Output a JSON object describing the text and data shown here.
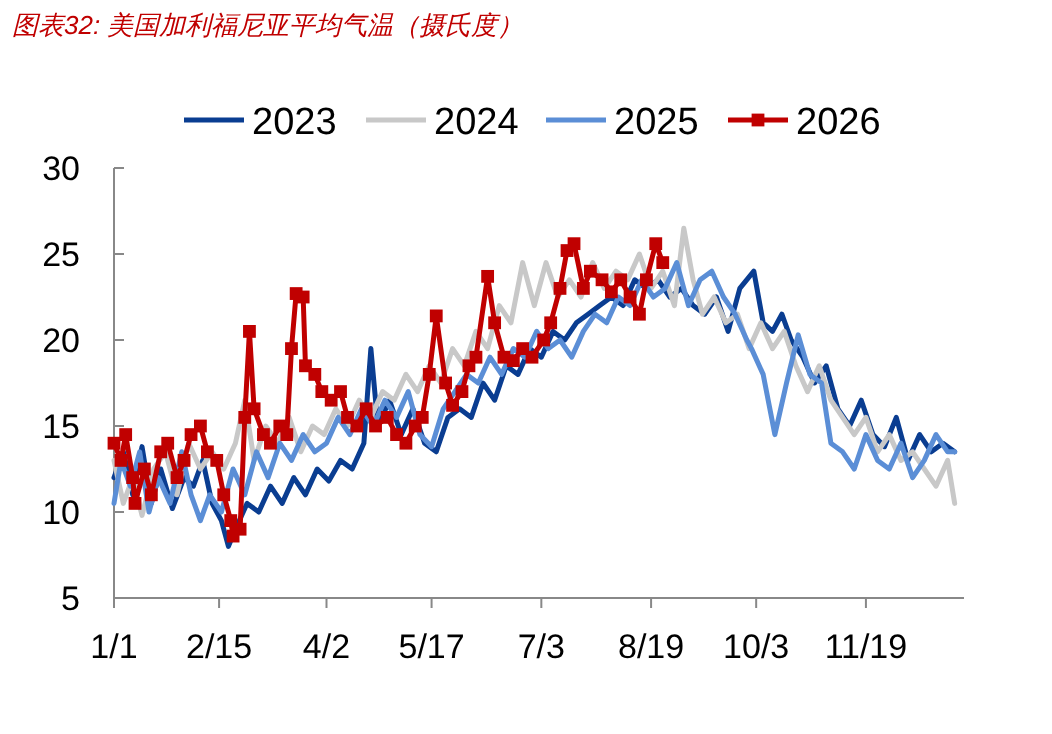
{
  "chart_data": {
    "type": "line",
    "title": "图表32: 美国加利福尼亚平均气温（摄氏度）",
    "legend": "top",
    "line_style": "solid",
    "xlim": [
      "--01-01",
      "--12-31"
    ],
    "xticks": [
      {
        "value": "--01-01",
        "label": "1/1"
      },
      {
        "value": "--02-15",
        "label": "2/15"
      },
      {
        "value": "--04-02",
        "label": "4/2"
      },
      {
        "value": "--05-17",
        "label": "5/17"
      },
      {
        "value": "--07-03",
        "label": "7/3"
      },
      {
        "value": "--08-19",
        "label": "8/19"
      },
      {
        "value": "--10-03",
        "label": "10/3"
      },
      {
        "value": "--11-19",
        "label": "11/19"
      }
    ],
    "ylim": [
      5,
      30
    ],
    "yticks": [
      5,
      10,
      15,
      20,
      25,
      30
    ],
    "series": [
      {
        "name": "2023",
        "color": "#0a3d91",
        "marker": "none",
        "x": [
          "--01-01",
          "--01-05",
          "--01-09",
          "--01-13",
          "--01-17",
          "--01-21",
          "--01-26",
          "--01-31",
          "--02-04",
          "--02-08",
          "--02-12",
          "--02-16",
          "--02-19",
          "--02-22",
          "--02-27",
          "--03-04",
          "--03-09",
          "--03-14",
          "--03-19",
          "--03-24",
          "--03-29",
          "--04-03",
          "--04-08",
          "--04-13",
          "--04-18",
          "--04-21",
          "--04-24",
          "--04-29",
          "--05-04",
          "--05-09",
          "--05-14",
          "--05-19",
          "--05-24",
          "--05-29",
          "--06-03",
          "--06-08",
          "--06-13",
          "--06-18",
          "--06-23",
          "--06-28",
          "--07-03",
          "--07-08",
          "--07-13",
          "--07-18",
          "--07-23",
          "--07-28",
          "--08-02",
          "--08-07",
          "--08-12",
          "--08-17",
          "--08-22",
          "--08-27",
          "--09-01",
          "--09-06",
          "--09-11",
          "--09-16",
          "--09-21",
          "--09-26",
          "--10-02",
          "--10-06",
          "--10-10",
          "--10-14",
          "--10-18",
          "--10-23",
          "--10-28",
          "--11-02",
          "--11-07",
          "--11-12",
          "--11-17",
          "--11-22",
          "--11-27",
          "--12-02",
          "--12-07",
          "--12-12",
          "--12-17",
          "--12-22",
          "--12-27"
        ],
        "values": [
          12.0,
          13.5,
          11.0,
          13.8,
          10.5,
          12.5,
          10.2,
          12.0,
          11.5,
          13.0,
          10.5,
          9.5,
          8.0,
          9.0,
          10.5,
          10.0,
          11.5,
          10.5,
          12.0,
          11.0,
          12.5,
          11.8,
          13.0,
          12.5,
          14.0,
          19.5,
          15.0,
          16.5,
          14.5,
          16.0,
          14.0,
          13.5,
          15.5,
          16.0,
          15.5,
          17.5,
          16.5,
          18.5,
          18.0,
          19.5,
          19.0,
          20.5,
          20.0,
          21.0,
          21.5,
          22.0,
          22.5,
          22.0,
          23.5,
          23.0,
          23.5,
          22.5,
          23.0,
          22.0,
          21.5,
          22.5,
          20.5,
          23.0,
          24.0,
          21.0,
          20.5,
          21.5,
          20.0,
          19.0,
          17.5,
          18.5,
          16.0,
          15.0,
          16.5,
          14.5,
          13.8,
          15.5,
          13.0,
          14.5,
          13.5,
          14.0,
          13.5
        ]
      },
      {
        "name": "2024",
        "color": "#c8c8c8",
        "marker": "none",
        "x": [
          "--01-01",
          "--01-05",
          "--01-09",
          "--01-13",
          "--01-18",
          "--01-23",
          "--01-28",
          "--02-02",
          "--02-07",
          "--02-12",
          "--02-17",
          "--02-22",
          "--02-26",
          "--03-02",
          "--03-07",
          "--03-12",
          "--03-17",
          "--03-22",
          "--03-27",
          "--04-01",
          "--04-06",
          "--04-11",
          "--04-16",
          "--04-21",
          "--04-26",
          "--05-01",
          "--05-06",
          "--05-11",
          "--05-16",
          "--05-21",
          "--05-26",
          "--05-31",
          "--06-05",
          "--06-10",
          "--06-15",
          "--06-20",
          "--06-25",
          "--06-30",
          "--07-05",
          "--07-10",
          "--07-15",
          "--07-20",
          "--07-25",
          "--07-30",
          "--08-04",
          "--08-09",
          "--08-14",
          "--08-19",
          "--08-24",
          "--08-29",
          "--09-02",
          "--09-06",
          "--09-10",
          "--09-15",
          "--09-20",
          "--09-25",
          "--09-30",
          "--10-05",
          "--10-10",
          "--10-15",
          "--10-20",
          "--10-25",
          "--10-30",
          "--11-04",
          "--11-09",
          "--11-14",
          "--11-19",
          "--11-24",
          "--11-29",
          "--12-04",
          "--12-09",
          "--12-14",
          "--12-19",
          "--12-24",
          "--12-27"
        ],
        "values": [
          13.0,
          10.5,
          12.0,
          9.8,
          12.5,
          13.5,
          11.0,
          14.0,
          12.5,
          13.5,
          12.5,
          14.0,
          16.5,
          13.0,
          15.0,
          14.0,
          15.5,
          13.5,
          15.0,
          14.5,
          16.0,
          15.0,
          16.5,
          15.5,
          17.0,
          16.5,
          18.0,
          17.0,
          18.5,
          17.5,
          19.5,
          18.5,
          20.5,
          19.5,
          22.0,
          21.0,
          24.5,
          22.0,
          24.5,
          22.5,
          23.5,
          22.5,
          24.5,
          23.0,
          24.0,
          23.5,
          25.0,
          23.0,
          24.0,
          22.0,
          26.5,
          23.5,
          21.5,
          22.5,
          21.0,
          21.5,
          19.5,
          21.0,
          19.5,
          20.5,
          18.5,
          17.0,
          18.5,
          16.5,
          15.5,
          14.5,
          15.5,
          13.5,
          14.5,
          13.0,
          13.5,
          12.5,
          11.5,
          13.0,
          10.5
        ]
      },
      {
        "name": "2025",
        "color": "#5b8ed6",
        "marker": "none",
        "x": [
          "--01-01",
          "--01-04",
          "--01-08",
          "--01-12",
          "--01-16",
          "--01-20",
          "--01-25",
          "--01-30",
          "--02-03",
          "--02-07",
          "--02-11",
          "--02-16",
          "--02-21",
          "--02-26",
          "--03-03",
          "--03-08",
          "--03-13",
          "--03-18",
          "--03-23",
          "--03-28",
          "--04-02",
          "--04-07",
          "--04-12",
          "--04-17",
          "--04-22",
          "--04-27",
          "--05-02",
          "--05-07",
          "--05-12",
          "--05-17",
          "--05-22",
          "--05-27",
          "--06-01",
          "--06-06",
          "--06-11",
          "--06-16",
          "--06-21",
          "--06-26",
          "--07-01",
          "--07-06",
          "--07-11",
          "--07-16",
          "--07-21",
          "--07-26",
          "--07-31",
          "--08-05",
          "--08-10",
          "--08-15",
          "--08-20",
          "--08-25",
          "--08-30",
          "--09-04",
          "--09-09",
          "--09-14",
          "--09-19",
          "--09-24",
          "--09-29",
          "--10-01",
          "--10-06",
          "--10-11",
          "--10-16",
          "--10-21",
          "--10-26",
          "--10-31",
          "--11-04",
          "--11-09",
          "--11-14",
          "--11-19",
          "--11-24",
          "--11-29",
          "--12-04",
          "--12-09",
          "--12-14",
          "--12-19",
          "--12-24",
          "--12-27"
        ],
        "values": [
          10.5,
          13.0,
          11.5,
          13.5,
          10.0,
          12.0,
          10.5,
          13.5,
          11.0,
          9.5,
          11.0,
          10.0,
          12.5,
          11.0,
          13.5,
          12.0,
          14.0,
          13.0,
          14.5,
          13.5,
          14.0,
          15.5,
          14.5,
          16.0,
          15.0,
          16.5,
          15.5,
          17.0,
          14.5,
          13.8,
          16.0,
          17.0,
          18.0,
          17.5,
          19.0,
          18.0,
          19.5,
          19.0,
          20.5,
          19.5,
          20.0,
          19.0,
          20.5,
          21.5,
          21.0,
          22.5,
          22.0,
          23.5,
          22.5,
          23.0,
          24.5,
          22.0,
          23.5,
          24.0,
          22.5,
          21.5,
          20.0,
          19.5,
          18.0,
          14.5,
          17.5,
          20.3,
          18.0,
          17.5,
          14.0,
          13.5,
          12.5,
          14.5,
          13.0,
          12.5,
          14.0,
          12.0,
          13.0,
          14.5,
          13.5,
          13.5
        ]
      },
      {
        "name": "2026",
        "color": "#c00000",
        "marker": "square",
        "x": [
          "--01-01",
          "--01-04",
          "--01-06",
          "--01-09",
          "--01-10",
          "--01-14",
          "--01-17",
          "--01-21",
          "--01-24",
          "--01-28",
          "--01-31",
          "--02-03",
          "--02-07",
          "--02-10",
          "--02-14",
          "--02-17",
          "--02-20",
          "--02-21",
          "--02-24",
          "--02-26",
          "--02-28",
          "--03-02",
          "--03-06",
          "--03-09",
          "--03-13",
          "--03-16",
          "--03-18",
          "--03-20",
          "--03-23",
          "--03-24",
          "--03-28",
          "--03-31",
          "--04-04",
          "--04-08",
          "--04-11",
          "--04-15",
          "--04-19",
          "--04-23",
          "--04-28",
          "--05-02",
          "--05-06",
          "--05-10",
          "--05-13",
          "--05-16",
          "--05-19",
          "--05-23",
          "--05-26",
          "--05-30",
          "--06-02",
          "--06-05",
          "--06-10",
          "--06-13",
          "--06-17",
          "--06-21",
          "--06-25",
          "--06-29",
          "--07-04",
          "--07-07",
          "--07-11",
          "--07-14",
          "--07-17",
          "--07-21",
          "--07-24",
          "--07-29",
          "--08-02",
          "--08-06",
          "--08-10",
          "--08-14",
          "--08-17",
          "--08-21",
          "--08-24"
        ],
        "values": [
          14.0,
          13.0,
          14.5,
          12.0,
          10.5,
          12.5,
          11.0,
          13.5,
          14.0,
          12.0,
          13.0,
          14.5,
          15.0,
          13.5,
          13.0,
          11.0,
          9.5,
          8.6,
          9.0,
          15.5,
          20.5,
          16.0,
          14.5,
          14.0,
          15.0,
          14.5,
          19.5,
          22.7,
          22.5,
          18.5,
          18.0,
          17.0,
          16.5,
          17.0,
          15.5,
          15.0,
          16.0,
          15.0,
          15.5,
          14.5,
          14.0,
          15.0,
          15.5,
          18.0,
          21.4,
          17.5,
          16.2,
          17.0,
          18.5,
          19.0,
          23.7,
          21.0,
          19.0,
          18.8,
          19.5,
          19.0,
          20.0,
          21.0,
          23.0,
          25.2,
          25.6,
          23.0,
          24.0,
          23.5,
          22.8,
          23.5,
          22.5,
          21.5,
          23.5,
          25.6,
          24.5
        ]
      }
    ]
  }
}
